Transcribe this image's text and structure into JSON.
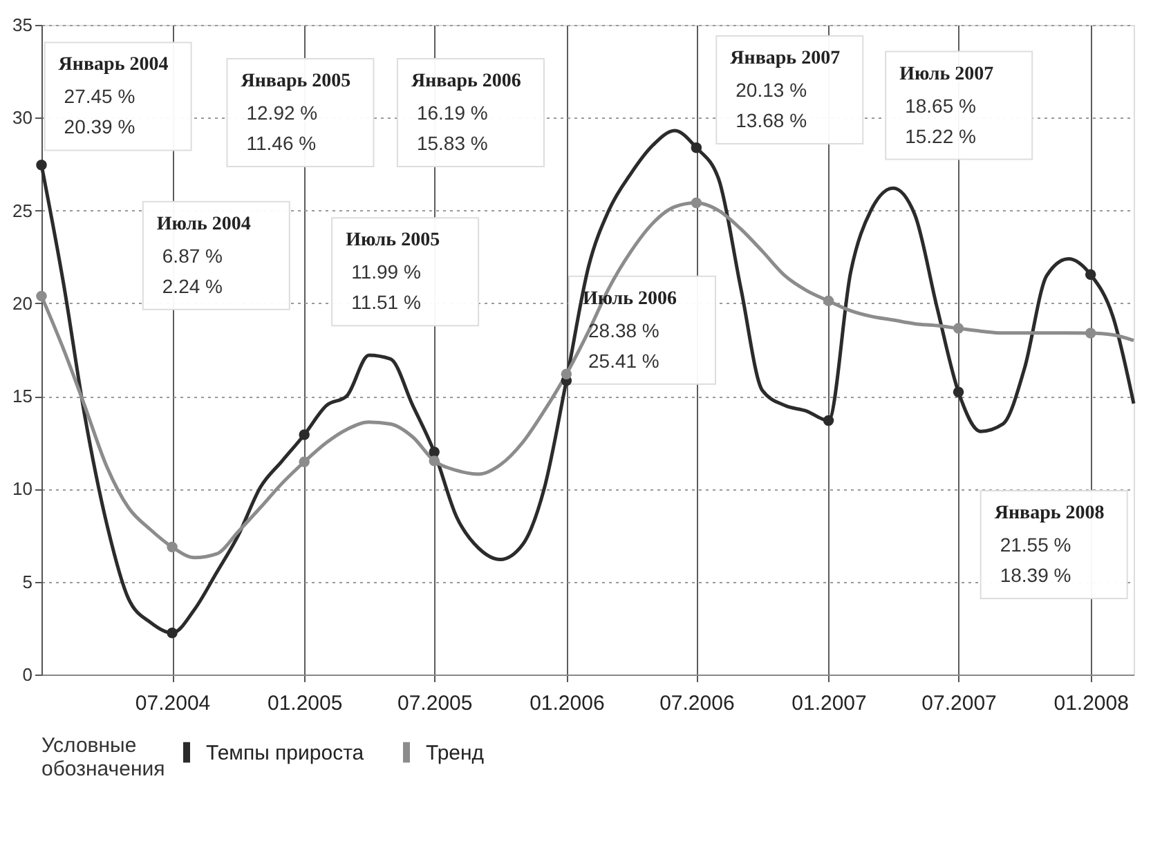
{
  "chart_data": {
    "type": "line",
    "legend_title": "Условные обозначения",
    "x": [
      "2004-01",
      "2004-02",
      "2004-03",
      "2004-04",
      "2004-05",
      "2004-06",
      "2004-07",
      "2004-08",
      "2004-09",
      "2004-10",
      "2004-11",
      "2004-12",
      "2005-01",
      "2005-02",
      "2005-03",
      "2005-04",
      "2005-05",
      "2005-06",
      "2005-07",
      "2005-08",
      "2005-09",
      "2005-10",
      "2005-11",
      "2005-12",
      "2006-01",
      "2006-02",
      "2006-03",
      "2006-04",
      "2006-05",
      "2006-06",
      "2006-07",
      "2006-08",
      "2006-09",
      "2006-10",
      "2006-11",
      "2006-12",
      "2007-01",
      "2007-02",
      "2007-03",
      "2007-04",
      "2007-05",
      "2007-06",
      "2007-07",
      "2007-08",
      "2007-09",
      "2007-10",
      "2007-11",
      "2007-12",
      "2008-01",
      "2008-02",
      "2008-03"
    ],
    "series": [
      {
        "name": "Темпы прироста",
        "color": "#2b2b2b",
        "values": [
          27.45,
          21,
          14,
          8.1,
          4.1,
          2.8,
          2.24,
          3.5,
          5.5,
          7.5,
          10.1,
          11.5,
          12.92,
          14.5,
          15,
          17.2,
          17,
          14.5,
          11.99,
          8.5,
          6.8,
          6.2,
          7,
          10,
          15.83,
          22,
          25,
          27,
          28.5,
          29.3,
          28.38,
          26.7,
          20.8,
          15.3,
          14.5,
          14.2,
          13.68,
          21.7,
          25,
          26.2,
          24.8,
          19.8,
          15.22,
          13.1,
          13.5,
          16.5,
          21.5,
          22.4,
          21.55,
          19.3,
          14.6
        ]
      },
      {
        "name": "Тренд",
        "color": "#8c8c8c",
        "values": [
          20.39,
          17.5,
          14.5,
          11.2,
          9,
          7.8,
          6.87,
          6.3,
          6.5,
          7.7,
          9,
          10.3,
          11.46,
          12.5,
          13.2,
          13.6,
          13.5,
          12.8,
          11.51,
          11,
          10.8,
          11.3,
          12.5,
          14.2,
          16.19,
          18.5,
          20.8,
          22.8,
          24.3,
          25.2,
          25.41,
          25,
          24,
          22.8,
          21.5,
          20.7,
          20.13,
          19.6,
          19.3,
          19.1,
          18.9,
          18.8,
          18.65,
          18.5,
          18.4,
          18.4,
          18.4,
          18.4,
          18.39,
          18.3,
          18
        ]
      },
      {
        "type": "scatter",
        "color": "#2b2b2b",
        "x": [
          "2004-01",
          "2004-07",
          "2005-01",
          "2005-07",
          "2006-01",
          "2006-07",
          "2007-01",
          "2007-07",
          "2008-01"
        ],
        "values": [
          27.45,
          2.24,
          12.92,
          11.99,
          15.83,
          28.38,
          13.68,
          15.22,
          21.55
        ]
      },
      {
        "type": "scatter",
        "color": "#8c8c8c",
        "x": [
          "2004-01",
          "2004-07",
          "2005-01",
          "2005-07",
          "2006-01",
          "2006-07",
          "2007-01",
          "2007-07",
          "2008-01"
        ],
        "values": [
          20.39,
          6.87,
          11.46,
          11.51,
          16.19,
          25.41,
          20.13,
          18.65,
          18.39
        ]
      }
    ],
    "xlim": [
      "2004-01",
      "2008-03"
    ],
    "xticks": [
      {
        "value": "2004-07",
        "label": "07.2004"
      },
      {
        "value": "2005-01",
        "label": "01.2005"
      },
      {
        "value": "2005-07",
        "label": "07.2005"
      },
      {
        "value": "2006-01",
        "label": "01.2006"
      },
      {
        "value": "2006-07",
        "label": "07.2006"
      },
      {
        "value": "2007-01",
        "label": "01.2007"
      },
      {
        "value": "2007-07",
        "label": "07.2007"
      },
      {
        "value": "2008-01",
        "label": "01.2008"
      }
    ],
    "ylim": [
      0,
      35
    ],
    "yticks": [
      0,
      5,
      10,
      15,
      20,
      25,
      30,
      35
    ],
    "grid": true,
    "legend": "bottom",
    "line_style": "solid",
    "annotations": [
      "Январь 2004\n27.45 %\n20.39 %",
      "Июль 2004\n6.87 %\n2.24 %",
      "Январь 2005\n12.92 %\n11.46 %",
      "Июль 2005\n11.99 %\n11.51 %",
      "Январь 2006\n16.19 %\n15.83 %",
      "Июль 2006\n28.38 %\n25.41 %",
      "Январь 2007\n20.13 %\n13.68 %",
      "Июль 2007\n18.65 %\n15.22 %",
      "Январь 2008\n21.55 %\n18.39 %"
    ]
  }
}
